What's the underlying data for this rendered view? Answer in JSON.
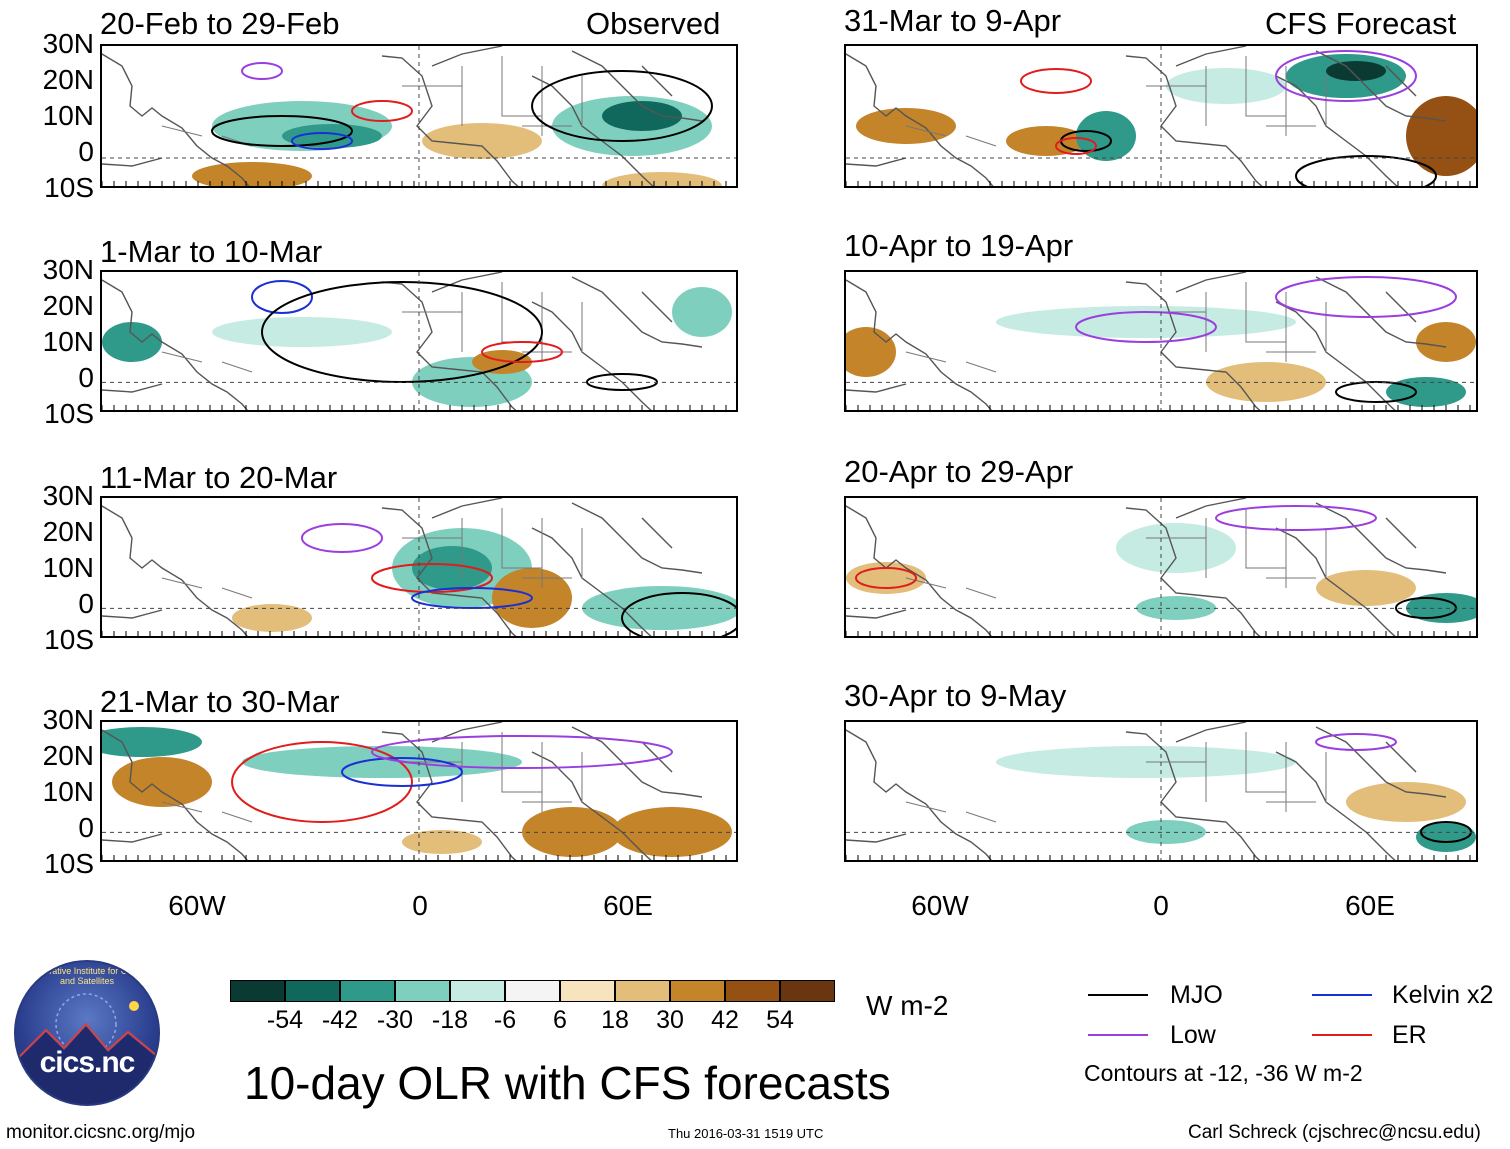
{
  "columns": {
    "left": "Observed",
    "right": "CFS Forecast"
  },
  "panels": [
    {
      "title": "20-Feb to 29-Feb"
    },
    {
      "title": "31-Mar to 9-Apr"
    },
    {
      "title": "1-Mar to 10-Mar"
    },
    {
      "title": "10-Apr to 19-Apr"
    },
    {
      "title": "11-Mar to 20-Mar"
    },
    {
      "title": "20-Apr to 29-Apr"
    },
    {
      "title": "21-Mar to 30-Mar"
    },
    {
      "title": "30-Apr to 9-May"
    }
  ],
  "lat_labels": [
    "30N",
    "20N",
    "10N",
    "0",
    "10S"
  ],
  "lon_labels": [
    "60W",
    "0",
    "60E"
  ],
  "colorbar": {
    "colors": [
      "#0b3a33",
      "#10685c",
      "#2f998a",
      "#7fcfbf",
      "#c5ebe2",
      "#f4f4f4",
      "#f7e3bd",
      "#e3bd7a",
      "#c3842a",
      "#955014",
      "#6a3610"
    ],
    "ticks": [
      "-54",
      "-42",
      "-30",
      "-18",
      "-6",
      "6",
      "18",
      "30",
      "42",
      "54"
    ],
    "units": "W m-2"
  },
  "title": "10-day OLR with CFS forecasts",
  "legend": {
    "items": [
      {
        "label": "MJO",
        "color": "#000000"
      },
      {
        "label": "Kelvin x2",
        "color": "#1a2fd6"
      },
      {
        "label": "Low",
        "color": "#9a3ee0"
      },
      {
        "label": "ER",
        "color": "#e01c1c"
      }
    ],
    "note": "Contours at -12, -36 W m-2"
  },
  "logo": {
    "text": "cics.nc",
    "ring": "Cooperative Institute for Climate and Satellites"
  },
  "footer": {
    "left": "monitor.cicsnc.org/mjo",
    "center": "Thu 2016-03-31 1519 UTC",
    "right": "Carl Schreck (cjschrec@ncsu.edu)"
  }
}
